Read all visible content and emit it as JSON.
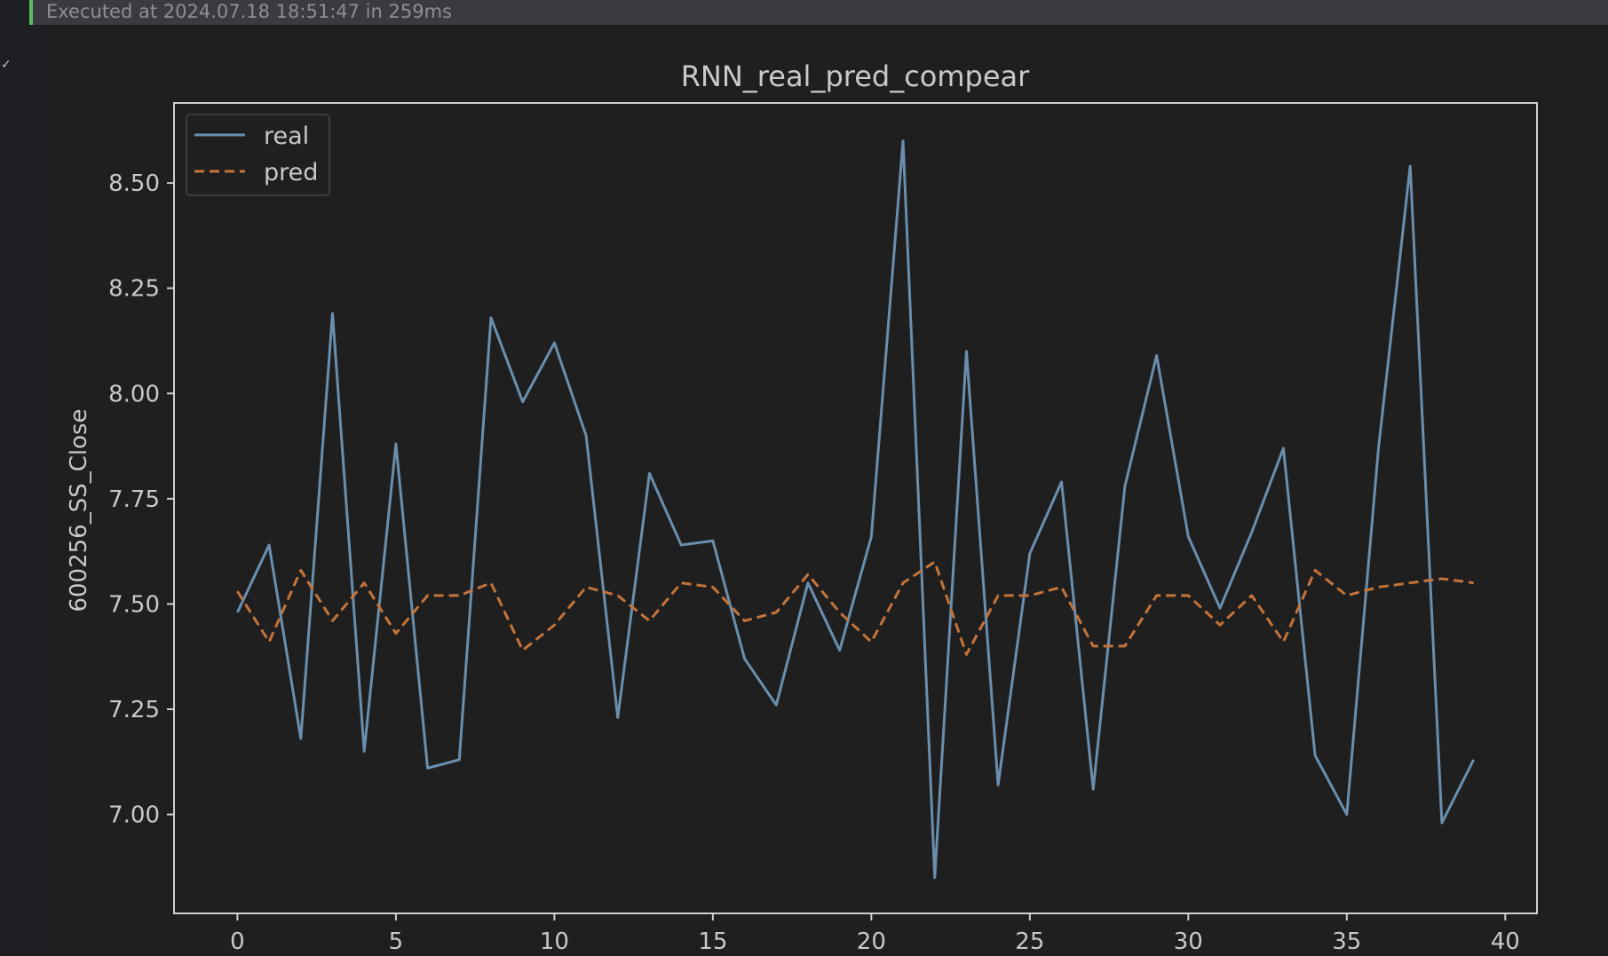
{
  "cell": {
    "exec_status": "Executed at 2024.07.18 18:51:47 in 259ms"
  },
  "colors": {
    "real": "#6a8fae",
    "pred": "#c4743a",
    "text": "#c8c9cc",
    "axes": "#d0d0d0",
    "plot_bg": "#1f1f1f"
  },
  "chart_data": {
    "type": "line",
    "title": "RNN_real_pred_compear",
    "xlabel": "",
    "ylabel": "600256_SS_Close",
    "xlim": [
      -2,
      41
    ],
    "ylim": [
      6.765,
      8.69
    ],
    "xticks": [
      0,
      5,
      10,
      15,
      20,
      25,
      30,
      35,
      40
    ],
    "yticks": [
      7.0,
      7.25,
      7.5,
      7.75,
      8.0,
      8.25,
      8.5
    ],
    "ytick_labels": [
      "7.00",
      "7.25",
      "7.50",
      "7.75",
      "8.00",
      "8.25",
      "8.50"
    ],
    "grid": false,
    "legend_position": "top-left",
    "x": [
      0,
      1,
      2,
      3,
      4,
      5,
      6,
      7,
      8,
      9,
      10,
      11,
      12,
      13,
      14,
      15,
      16,
      17,
      18,
      19,
      20,
      21,
      22,
      23,
      24,
      25,
      26,
      27,
      28,
      29,
      30,
      31,
      32,
      33,
      34,
      35,
      36,
      37,
      38,
      39
    ],
    "series": [
      {
        "name": "real",
        "style": "solid",
        "values": [
          7.48,
          7.64,
          7.18,
          8.19,
          7.15,
          7.88,
          7.11,
          7.13,
          8.18,
          7.98,
          8.12,
          7.9,
          7.23,
          7.81,
          7.64,
          7.65,
          7.37,
          7.26,
          7.55,
          7.39,
          7.66,
          8.6,
          6.85,
          8.1,
          7.07,
          7.62,
          7.79,
          7.06,
          7.78,
          8.09,
          7.66,
          7.49,
          7.67,
          7.87,
          7.14,
          7.0,
          7.87,
          8.54,
          6.98,
          7.13
        ]
      },
      {
        "name": "pred",
        "style": "dashed",
        "values": [
          7.53,
          7.41,
          7.58,
          7.46,
          7.55,
          7.43,
          7.52,
          7.52,
          7.55,
          7.39,
          7.45,
          7.54,
          7.52,
          7.46,
          7.55,
          7.54,
          7.46,
          7.48,
          7.57,
          7.48,
          7.41,
          7.55,
          7.6,
          7.38,
          7.52,
          7.52,
          7.54,
          7.4,
          7.4,
          7.52,
          7.52,
          7.45,
          7.52,
          7.41,
          7.58,
          7.52,
          7.54,
          7.55,
          7.56,
          7.55
        ]
      }
    ]
  }
}
